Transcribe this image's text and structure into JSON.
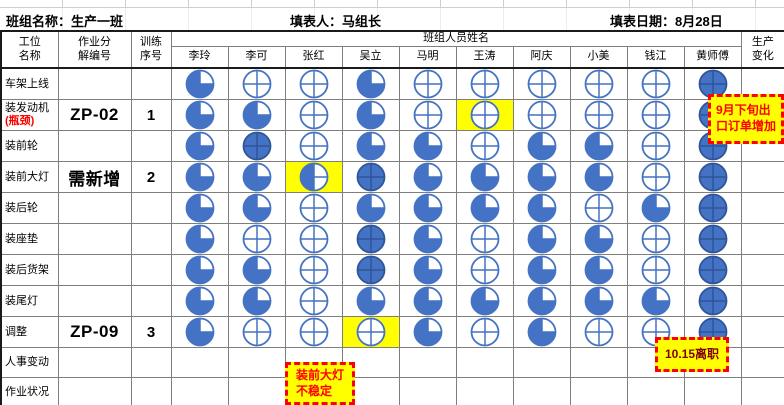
{
  "title_bar": {
    "team": "班组名称：生产一班",
    "filler": "填表人：马组长",
    "date": "填表日期：8月28日"
  },
  "table": {
    "header": {
      "station": "工位\n名称",
      "job_code": "作业分\n解编号",
      "train_no": "训练\n序号",
      "members": "班组人员姓名",
      "production_change": "生产\n变化"
    },
    "members": [
      "李玲",
      "李可",
      "张红",
      "吴立",
      "马明",
      "王涛",
      "阿庆",
      "小美",
      "钱江",
      "黄师傅"
    ],
    "skill_legend": {
      "0": "untrained",
      "2": "half-trained",
      "3": "three-quarter-trained",
      "4": "fully-trained"
    },
    "rows": [
      {
        "station": "车架上线",
        "note": "",
        "code": "",
        "train": "",
        "skills": [
          3,
          0,
          0,
          3,
          0,
          0,
          0,
          0,
          0,
          4
        ],
        "highlights": []
      },
      {
        "station": "装发动机",
        "note": "(瓶颈)",
        "code": "ZP-02",
        "train": "1",
        "skills": [
          3,
          3,
          0,
          3,
          0,
          0,
          0,
          0,
          0,
          4
        ],
        "highlights": [
          5
        ]
      },
      {
        "station": "装前轮",
        "note": "",
        "code": "",
        "train": "",
        "skills": [
          3,
          4,
          0,
          3,
          3,
          0,
          3,
          3,
          0,
          4
        ],
        "highlights": []
      },
      {
        "station": "装前大灯",
        "note": "",
        "code": "需新增",
        "train": "2",
        "skills": [
          3,
          3,
          2,
          4,
          3,
          3,
          3,
          3,
          0,
          4
        ],
        "highlights": [
          2
        ]
      },
      {
        "station": "装后轮",
        "note": "",
        "code": "",
        "train": "",
        "skills": [
          3,
          3,
          0,
          3,
          3,
          3,
          3,
          0,
          3,
          4
        ],
        "highlights": []
      },
      {
        "station": "装座垫",
        "note": "",
        "code": "",
        "train": "",
        "skills": [
          3,
          0,
          0,
          4,
          3,
          0,
          3,
          3,
          0,
          4
        ],
        "highlights": []
      },
      {
        "station": "装后货架",
        "note": "",
        "code": "",
        "train": "",
        "skills": [
          3,
          3,
          0,
          4,
          3,
          0,
          3,
          3,
          0,
          4
        ],
        "highlights": []
      },
      {
        "station": "装尾灯",
        "note": "",
        "code": "",
        "train": "",
        "skills": [
          3,
          3,
          0,
          3,
          3,
          3,
          3,
          3,
          3,
          4
        ],
        "highlights": []
      },
      {
        "station": "调整",
        "note": "",
        "code": "ZP-09",
        "train": "3",
        "skills": [
          3,
          0,
          0,
          0,
          3,
          0,
          3,
          0,
          0,
          4
        ],
        "highlights": [
          3
        ]
      },
      {
        "station": "人事变动",
        "note": "",
        "code": "",
        "train": "",
        "skills": [],
        "highlights": []
      },
      {
        "station": "作业状况",
        "note": "",
        "code": "",
        "train": "",
        "skills": [],
        "highlights": []
      }
    ]
  },
  "annotations": {
    "export_orders": "9月下旬出\n口订单增加",
    "resignation": "10.15离职",
    "unstable": "装前大灯\n不稳定"
  },
  "colors": {
    "pie_blue": "#4472C4",
    "pie_dark": "#2F5597",
    "highlight_yellow": "#FFFF00",
    "alert_red": "#FF0000"
  }
}
